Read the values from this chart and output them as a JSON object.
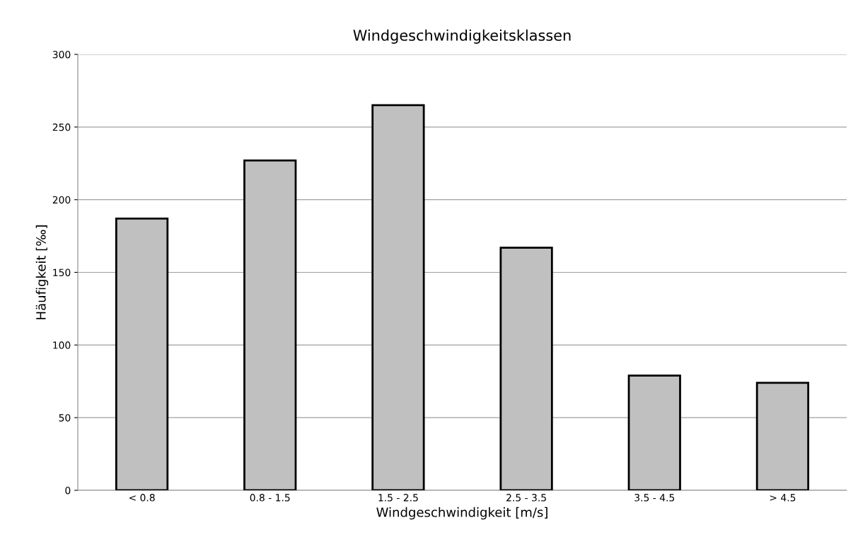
{
  "chart_data": {
    "type": "bar",
    "title": "Windgeschwindigkeitsklassen",
    "xlabel": "Windgeschwindigkeit [m/s]",
    "ylabel": "Häufigkeit [‰]",
    "categories": [
      "< 0.8",
      "0.8 - 1.5",
      "1.5 - 2.5",
      "2.5 - 3.5",
      "3.5 - 4.5",
      "> 4.5"
    ],
    "values": [
      187,
      227,
      265,
      167,
      79,
      74
    ],
    "color": "#c0c0c0",
    "ylim": [
      0,
      300
    ],
    "yticks": [
      0,
      50,
      100,
      150,
      200,
      250,
      300
    ],
    "grid": "y"
  }
}
